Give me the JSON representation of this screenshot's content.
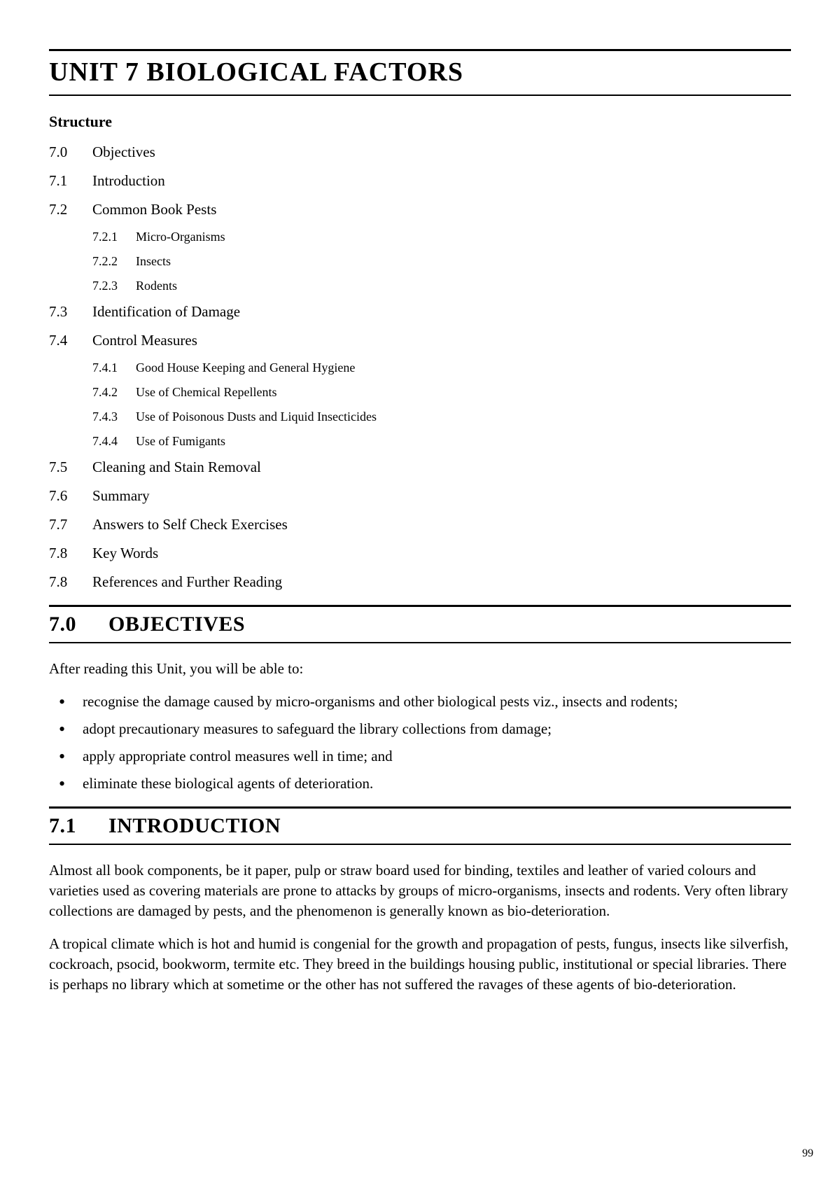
{
  "title": "UNIT 7   BIOLOGICAL  FACTORS",
  "structure_label": "Structure",
  "toc": [
    {
      "num": "7.0",
      "label": "Objectives"
    },
    {
      "num": "7.1",
      "label": "Introduction"
    },
    {
      "num": "7.2",
      "label": "Common Book Pests",
      "sub": [
        {
          "num": "7.2.1",
          "label": "Micro-Organisms"
        },
        {
          "num": "7.2.2",
          "label": "Insects"
        },
        {
          "num": "7.2.3",
          "label": "Rodents"
        }
      ]
    },
    {
      "num": "7.3",
      "label": "Identification of Damage"
    },
    {
      "num": "7.4",
      "label": "Control Measures",
      "sub": [
        {
          "num": "7.4.1",
          "label": "Good House Keeping and General Hygiene"
        },
        {
          "num": "7.4.2",
          "label": "Use of Chemical Repellents"
        },
        {
          "num": "7.4.3",
          "label": "Use of Poisonous Dusts and Liquid Insecticides"
        },
        {
          "num": "7.4.4",
          "label": "Use of Fumigants"
        }
      ]
    },
    {
      "num": "7.5",
      "label": "Cleaning and Stain Removal"
    },
    {
      "num": "7.6",
      "label": " Summary"
    },
    {
      "num": "7.7",
      "label": "Answers to Self Check Exercises"
    },
    {
      "num": "7.8",
      "label": " Key Words"
    },
    {
      "num": "7.8",
      "label": "References and Further Reading"
    }
  ],
  "section_objectives": {
    "num": "7.0",
    "title": "OBJECTIVES",
    "intro": "After reading this Unit, you will be able to:",
    "bullets": [
      "recognise the damage caused by micro-organisms and other biological pests viz., insects and rodents;",
      "adopt precautionary measures to safeguard the library collections from damage;",
      "apply appropriate control measures well in time; and",
      "eliminate these biological agents of deterioration."
    ]
  },
  "section_introduction": {
    "num": "7.1",
    "title": "INTRODUCTION",
    "paras": [
      "Almost all book components, be it paper, pulp or straw board used for binding, textiles and leather of varied colours and varieties used as covering materials are prone to attacks by groups of micro-organisms, insects and rodents. Very often library collections are damaged by pests, and the phenomenon is generally known as bio-deterioration.",
      "A tropical climate which is hot and humid is congenial for the growth and propagation of pests, fungus, insects like silverfish, cockroach, psocid, bookworm, termite etc. They breed in the buildings housing public, institutional or special libraries. There is perhaps no library which at sometime or the other has not suffered the ravages of these agents of bio-deterioration."
    ]
  },
  "page_number": "99"
}
